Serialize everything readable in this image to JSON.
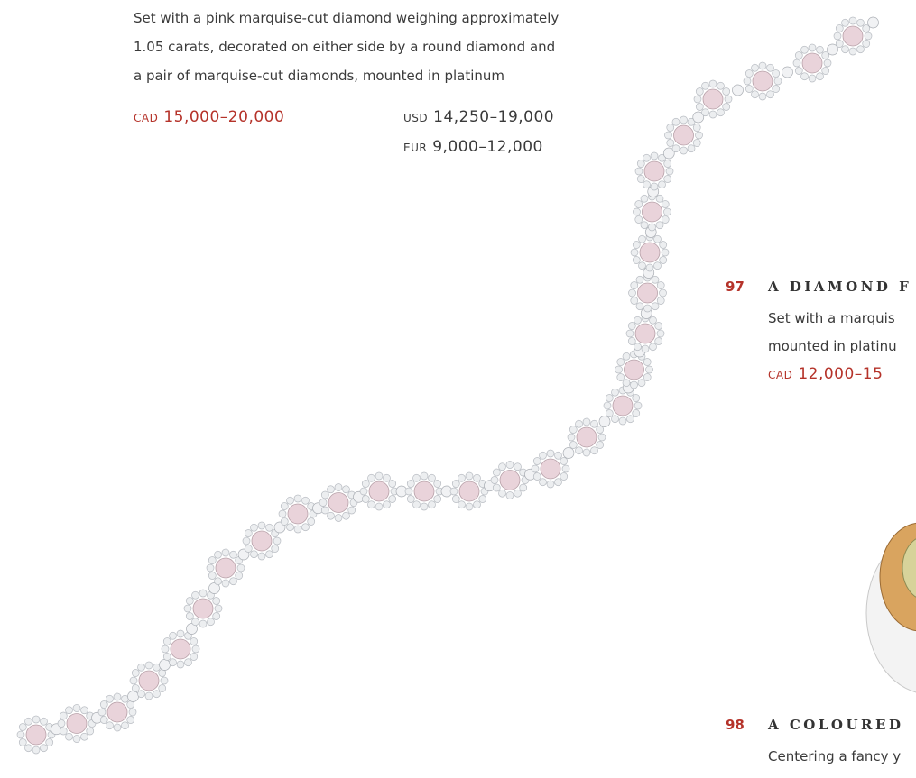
{
  "lot_96": {
    "description": [
      "Set with a pink marquise-cut diamond weighing approximately",
      "1.05 carats, decorated on either side by a round diamond and",
      "a pair of marquise-cut diamonds, mounted in platinum"
    ],
    "estimates": [
      {
        "currency": "CAD",
        "amount": "15,000–20,000"
      },
      {
        "currency": "USD",
        "amount": "14,250–19,000"
      },
      {
        "currency": "EUR",
        "amount": "9,000–12,000"
      }
    ]
  },
  "lot_97": {
    "number": "97",
    "title": "A DIAMOND F",
    "description": [
      "Set with a marquis",
      "mounted in platinu"
    ],
    "estimate": {
      "currency": "CAD",
      "amount": "12,000–15"
    }
  },
  "lot_98": {
    "number": "98",
    "title": "A COLOURED",
    "description": [
      "Centering a fancy y"
    ]
  }
}
